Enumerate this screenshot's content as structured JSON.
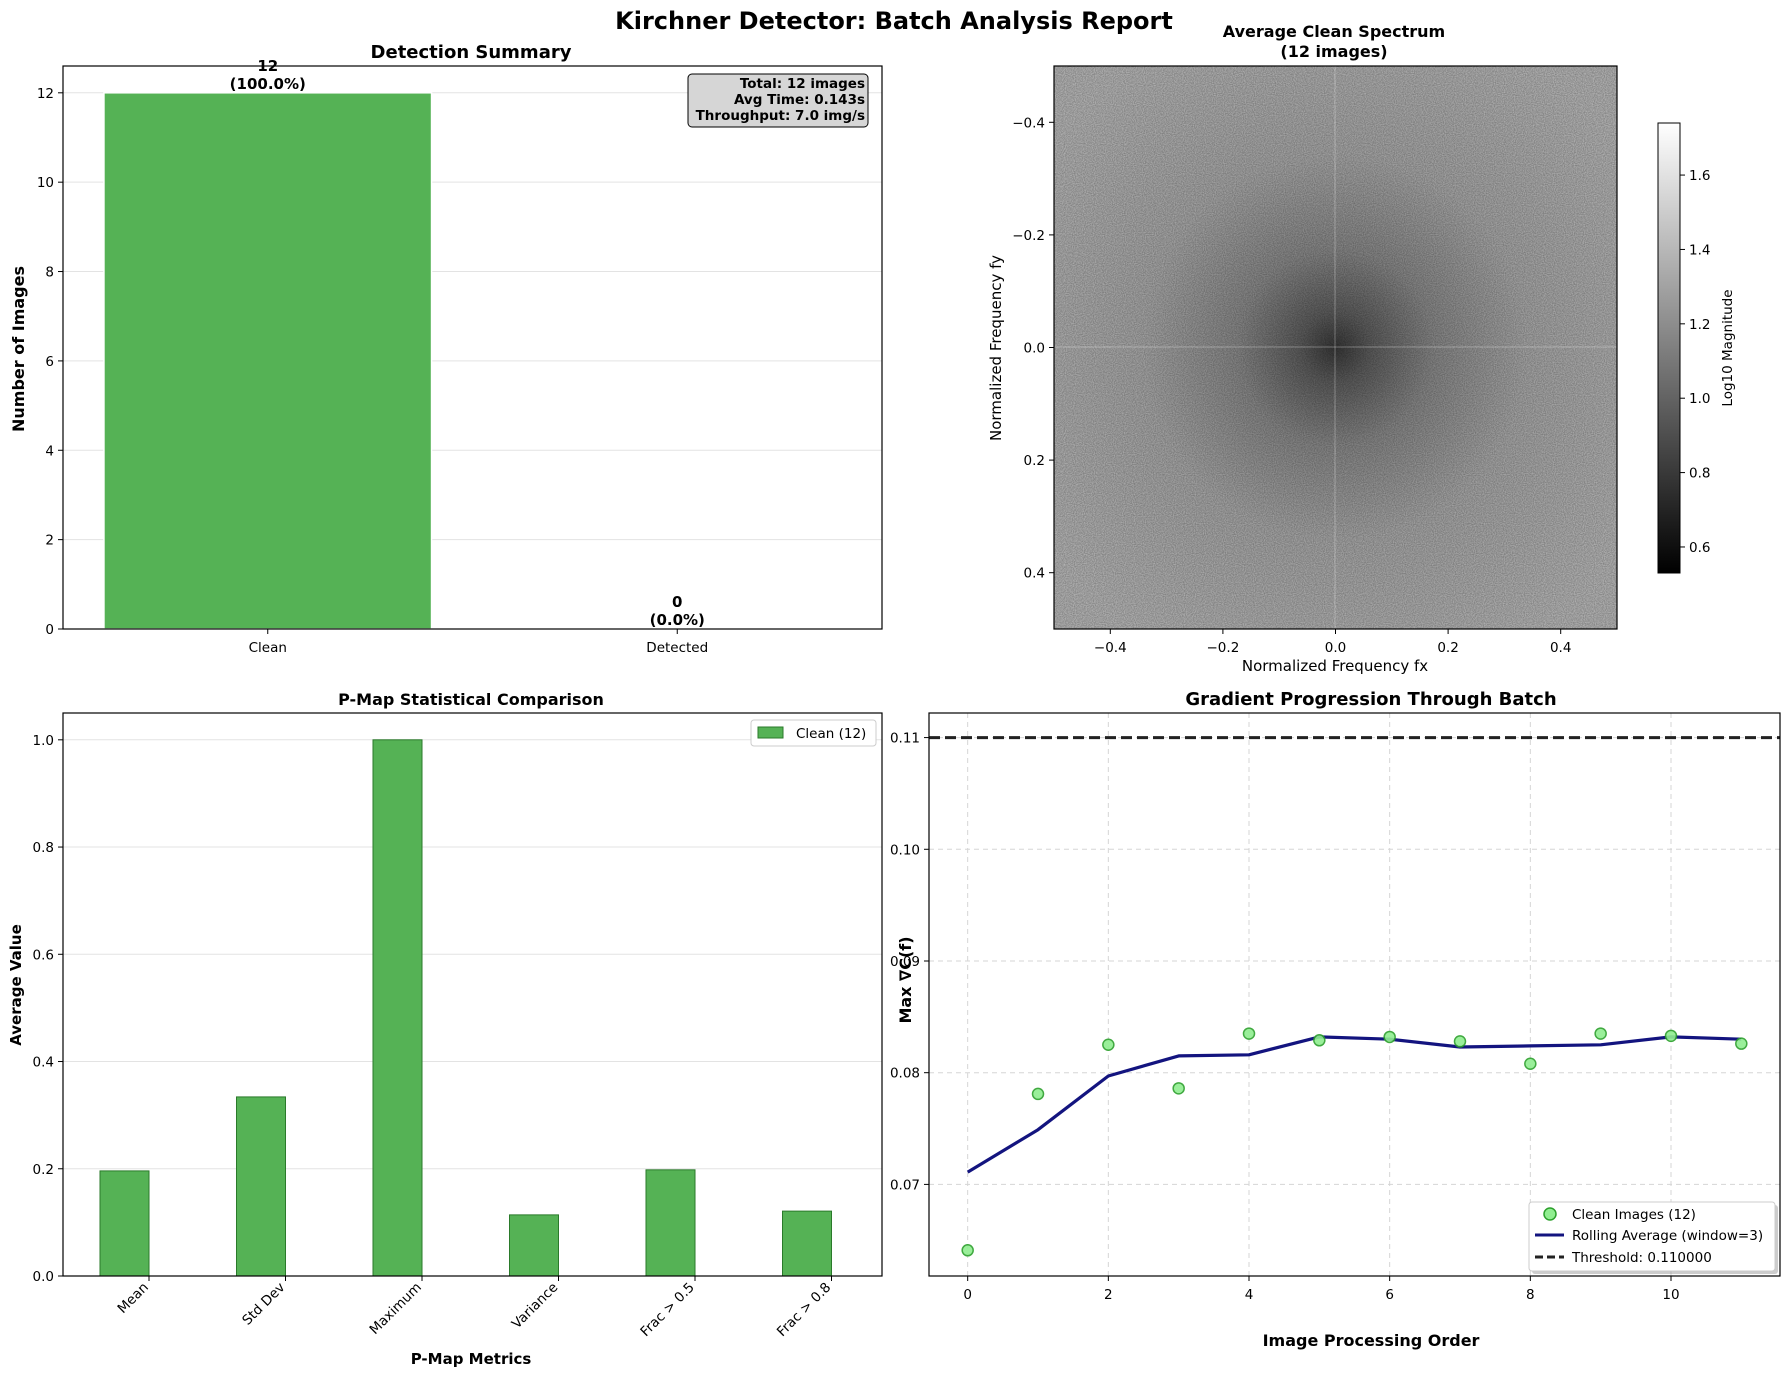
{
  "suptitle": "Kirchner Detector: Batch Analysis Report",
  "colors": {
    "clean": "#55b255",
    "clean_edge": "#2a7a2a",
    "rolling": "#13147f",
    "threshold": "#222222",
    "scatter_fill": "#90ee90",
    "scatter_edge": "#2ca02c"
  },
  "chart_data": [
    {
      "type": "bar",
      "title": "Detection Summary",
      "categories": [
        "Clean",
        "Detected"
      ],
      "values": [
        12,
        0
      ],
      "data_labels": [
        {
          "count": "12",
          "pct": "(100.0%)"
        },
        {
          "count": "0",
          "pct": "(0.0%)"
        }
      ],
      "ylabel": "Number of Images",
      "xlabel": "",
      "ylim": [
        0,
        12.6
      ],
      "yticks": [
        0,
        2,
        4,
        6,
        8,
        10,
        12
      ],
      "grid": "y",
      "info_box": [
        "Total: 12 images",
        "Avg Time: 0.143s",
        "Throughput: 7.0 img/s"
      ]
    },
    {
      "type": "heatmap",
      "title": "Average Clean Spectrum",
      "subtitle": "(12 images)",
      "xlabel": "Normalized Frequency fx",
      "ylabel": "Normalized Frequency fy",
      "xlim": [
        -0.5,
        0.5
      ],
      "ylim": [
        0.5,
        -0.5
      ],
      "xticks": [
        -0.4,
        -0.2,
        0.0,
        0.2,
        0.4
      ],
      "yticks": [
        -0.4,
        -0.2,
        0.0,
        0.2,
        0.4
      ],
      "colormap": "gray",
      "colorbar_label": "Log10 Magnitude",
      "colorbar_range": [
        0.53,
        1.74
      ],
      "colorbar_ticks": [
        0.6,
        0.8,
        1.0,
        1.2,
        1.4,
        1.6
      ]
    },
    {
      "type": "bar",
      "title": "P-Map Statistical Comparison",
      "categories": [
        "Mean",
        "Std Dev",
        "Maximum",
        "Variance",
        "Frac > 0.5",
        "Frac > 0.8"
      ],
      "series": [
        {
          "name": "Clean (12)",
          "values": [
            0.196,
            0.334,
            1.0,
            0.114,
            0.198,
            0.121
          ]
        }
      ],
      "xlabel": "P-Map Metrics",
      "ylabel": "Average Value",
      "ylim": [
        0,
        1.05
      ],
      "yticks": [
        0.0,
        0.2,
        0.4,
        0.6,
        0.8,
        1.0
      ],
      "grid": "y",
      "legend": "top-right"
    },
    {
      "type": "scatter",
      "title": "Gradient Progression Through Batch",
      "xlabel": "Image Processing Order",
      "ylabel": "Max ∇C(f)",
      "xlim": [
        -0.55,
        11.55
      ],
      "ylim": [
        0.0618,
        0.1122
      ],
      "xticks": [
        0,
        2,
        4,
        6,
        8,
        10
      ],
      "yticks": [
        0.07,
        0.08,
        0.09,
        0.1,
        0.11
      ],
      "ytick_labels": [
        "0.07",
        "0.08",
        "0.09",
        "0.10",
        "0.11"
      ],
      "grid": "both-dashed",
      "legend": "bottom-right",
      "series": [
        {
          "name": "Clean Images (12)",
          "type": "scatter",
          "x": [
            0,
            1,
            2,
            3,
            4,
            5,
            6,
            7,
            8,
            9,
            10,
            11
          ],
          "y": [
            0.0641,
            0.0781,
            0.0825,
            0.0786,
            0.0835,
            0.0829,
            0.0832,
            0.0828,
            0.0808,
            0.0835,
            0.0833,
            0.0826
          ]
        },
        {
          "name": "Rolling Average (window=3)",
          "type": "line",
          "x": [
            0,
            1,
            2,
            3,
            4,
            5,
            6,
            7,
            8,
            9,
            10,
            11
          ],
          "y": [
            0.0711,
            0.0749,
            0.0797,
            0.0815,
            0.0816,
            0.0832,
            0.083,
            0.0823,
            0.0824,
            0.0825,
            0.0832,
            0.083
          ]
        },
        {
          "name": "Threshold: 0.110000",
          "type": "hline",
          "y": 0.11
        }
      ]
    }
  ]
}
